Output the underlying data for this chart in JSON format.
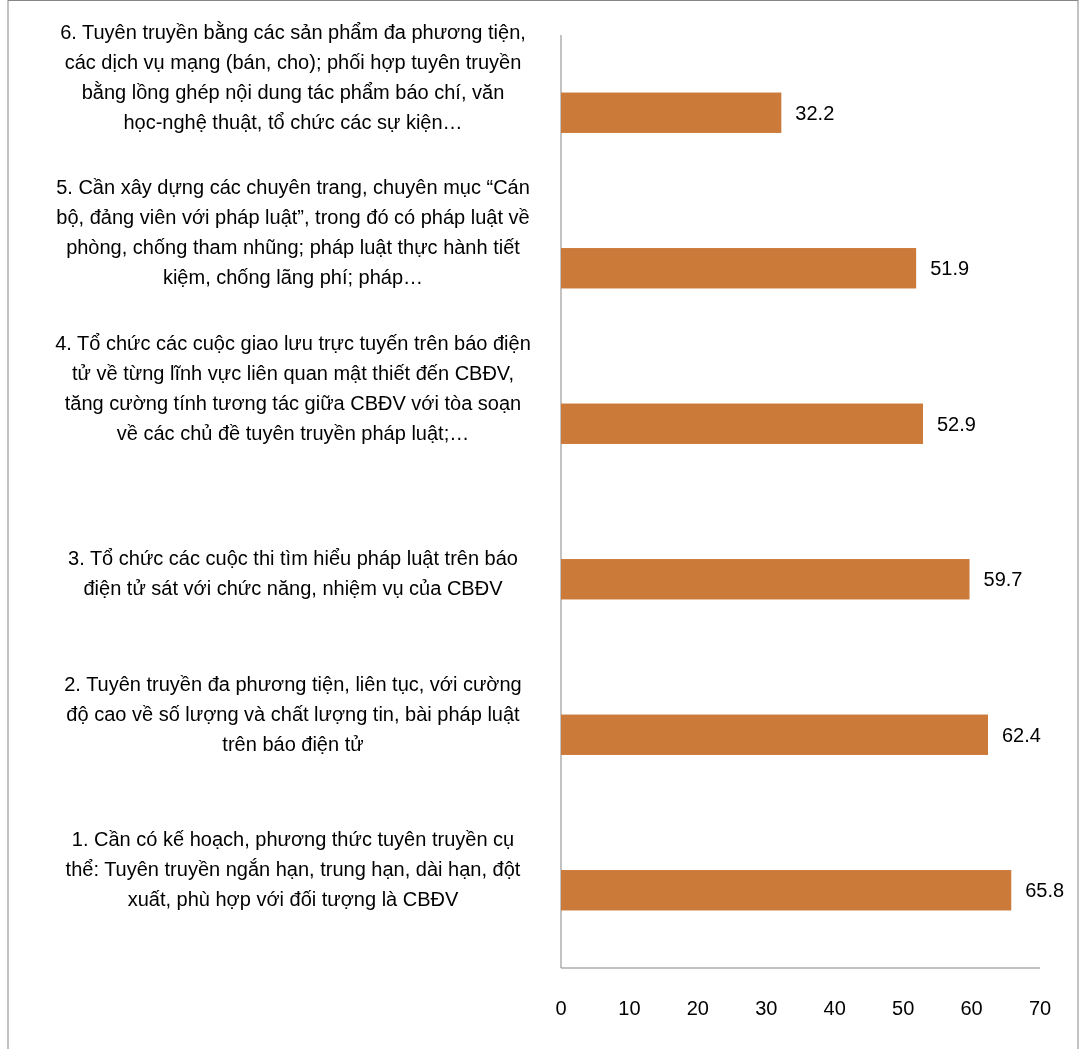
{
  "chart_data": {
    "type": "bar",
    "orientation": "horizontal",
    "categories": [
      "6. Tuyên truyền bằng các sản phẩm đa phương tiện, các dịch vụ mạng (bán, cho); phối hợp tuyên truyền bằng lồng ghép nội dung tác phẩm báo chí, văn học-nghệ thuật, tổ chức các sự kiện…",
      "5. Cần xây dựng các chuyên trang, chuyên mục “Cán bộ, đảng viên với pháp luật”, trong đó có pháp luật về phòng, chống tham nhũng; pháp luật thực hành tiết kiệm, chống lãng phí; pháp…",
      "4. Tổ chức các cuộc giao lưu trực tuyến trên báo điện tử về từng lĩnh vực liên quan mật thiết đến CBĐV, tăng cường tính tương tác giữa CBĐV với tòa soạn về các chủ đề tuyên truyền pháp luật;…",
      "3. Tổ chức các cuộc thi tìm hiểu pháp luật trên báo điện tử sát với chức năng, nhiệm vụ của CBĐV",
      "2. Tuyên truyền đa phương tiện, liên tục, với cường độ cao về số lượng và chất lượng tin, bài pháp luật trên báo điện tử",
      "1. Cần có kế hoạch, phương thức tuyên truyền cụ thể: Tuyên truyền ngắn hạn, trung hạn, dài hạn, đột xuất, phù hợp với đối tượng là CBĐV"
    ],
    "values": [
      32.2,
      51.9,
      52.9,
      59.7,
      62.4,
      65.8
    ],
    "color": "#cc7a3a",
    "xlim": [
      0,
      70
    ],
    "xticks": [
      0,
      10,
      20,
      30,
      40,
      50,
      60,
      70
    ],
    "data_labels": true
  }
}
